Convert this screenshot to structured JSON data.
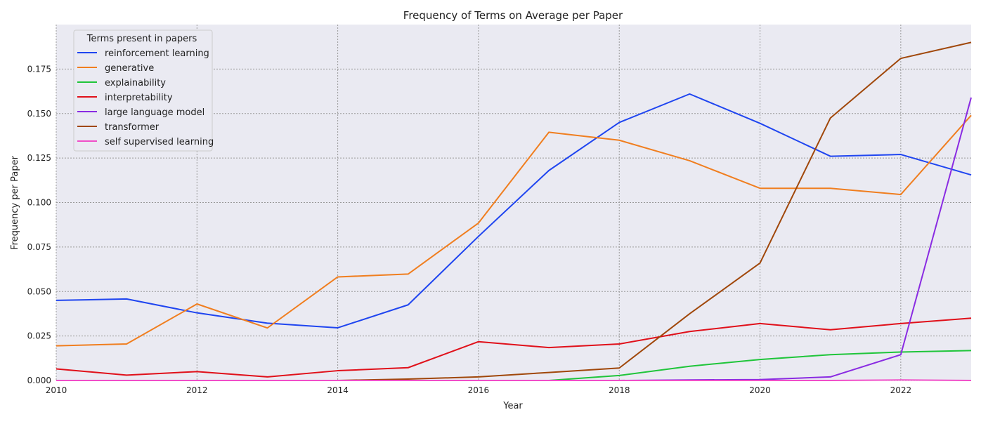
{
  "chart_data": {
    "type": "line",
    "title": "Frequency of Terms on Average per Paper",
    "xlabel": "Year",
    "ylabel": "Frequency per Paper",
    "xlim": [
      2010,
      2023
    ],
    "ylim": [
      0,
      0.2
    ],
    "grid": true,
    "legend_position": "top-left",
    "legend_title": "Terms present in papers",
    "x_ticks": [
      "2010",
      "2012",
      "2014",
      "2016",
      "2018",
      "2020",
      "2022"
    ],
    "y_ticks": [
      "0.000",
      "0.025",
      "0.050",
      "0.075",
      "0.100",
      "0.125",
      "0.150",
      "0.175"
    ],
    "x": [
      2010,
      2011,
      2012,
      2013,
      2014,
      2015,
      2016,
      2017,
      2018,
      2019,
      2020,
      2021,
      2022,
      2023
    ],
    "series": [
      {
        "name": "reinforcement learning",
        "color": "#1f45f0",
        "values": [
          0.045,
          0.0458,
          0.038,
          0.0322,
          0.0296,
          0.0425,
          0.081,
          0.118,
          0.145,
          0.161,
          0.1445,
          0.126,
          0.127,
          0.1155
        ]
      },
      {
        "name": "generative",
        "color": "#f07e1f",
        "values": [
          0.0195,
          0.0205,
          0.043,
          0.0295,
          0.0582,
          0.0598,
          0.0885,
          0.1395,
          0.135,
          0.1235,
          0.108,
          0.108,
          0.1045,
          0.149
        ]
      },
      {
        "name": "explainability",
        "color": "#1fc53a",
        "values": [
          0.0,
          0.0,
          0.0,
          0.0,
          0.0,
          0.0,
          0.0,
          0.0,
          0.0028,
          0.008,
          0.0118,
          0.0145,
          0.016,
          0.0168
        ]
      },
      {
        "name": "interpretability",
        "color": "#e0101a",
        "values": [
          0.0065,
          0.003,
          0.005,
          0.002,
          0.0055,
          0.0072,
          0.0218,
          0.0185,
          0.0205,
          0.0275,
          0.032,
          0.0285,
          0.032,
          0.035
        ]
      },
      {
        "name": "large language model",
        "color": "#8a2be2",
        "values": [
          0.0,
          0.0,
          0.0,
          0.0,
          0.0,
          0.0,
          0.0,
          0.0,
          0.0,
          0.0003,
          0.0005,
          0.002,
          0.0145,
          0.159
        ]
      },
      {
        "name": "transformer",
        "color": "#a0470a",
        "values": [
          0.0,
          0.0,
          0.0,
          0.0,
          0.0,
          0.0008,
          0.002,
          0.0045,
          0.007,
          0.0375,
          0.066,
          0.1475,
          0.181,
          0.19
        ]
      },
      {
        "name": "self supervised learning",
        "color": "#f04ec8",
        "values": [
          0.0,
          0.0,
          0.0,
          0.0,
          0.0,
          0.0,
          0.0,
          0.0,
          0.0,
          0.0,
          0.0,
          0.0,
          0.0003,
          0.0
        ]
      }
    ]
  }
}
